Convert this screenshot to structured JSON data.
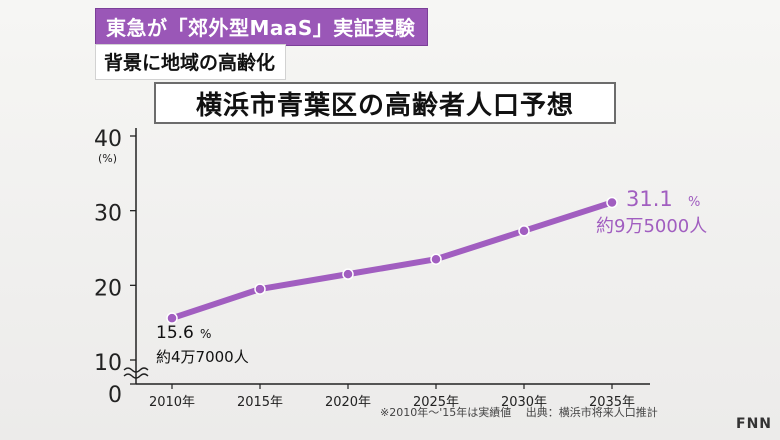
{
  "headline": "東急が「郊外型MaaS」実証実験",
  "subheadline": "背景に地域の高齢化",
  "logo": "FNN",
  "note": "※2010年〜'15年は実績値　 出典：横浜市将来人口推計",
  "chart_data": {
    "type": "line",
    "title": "横浜市青葉区の高齢者人口予想",
    "ylabel": "(%)",
    "categories": [
      "2010年",
      "2015年",
      "2020年",
      "2025年",
      "2030年",
      "2035年"
    ],
    "series": [
      {
        "values": [
          15.6,
          19.5,
          21.5,
          23.5,
          27.3,
          31.1
        ]
      }
    ],
    "ylim": [
      0,
      40
    ],
    "yticks": [
      "0",
      "10",
      "20",
      "30",
      "40"
    ],
    "axis_break": true,
    "annotations": [
      {
        "point": 0,
        "value": "15.6",
        "unit": "%",
        "population": "約4万7000人"
      },
      {
        "point": 5,
        "value": "31.1",
        "unit": "%",
        "population": "約9万5000人"
      }
    ],
    "line_color": "#a15ec0",
    "grid": false
  }
}
